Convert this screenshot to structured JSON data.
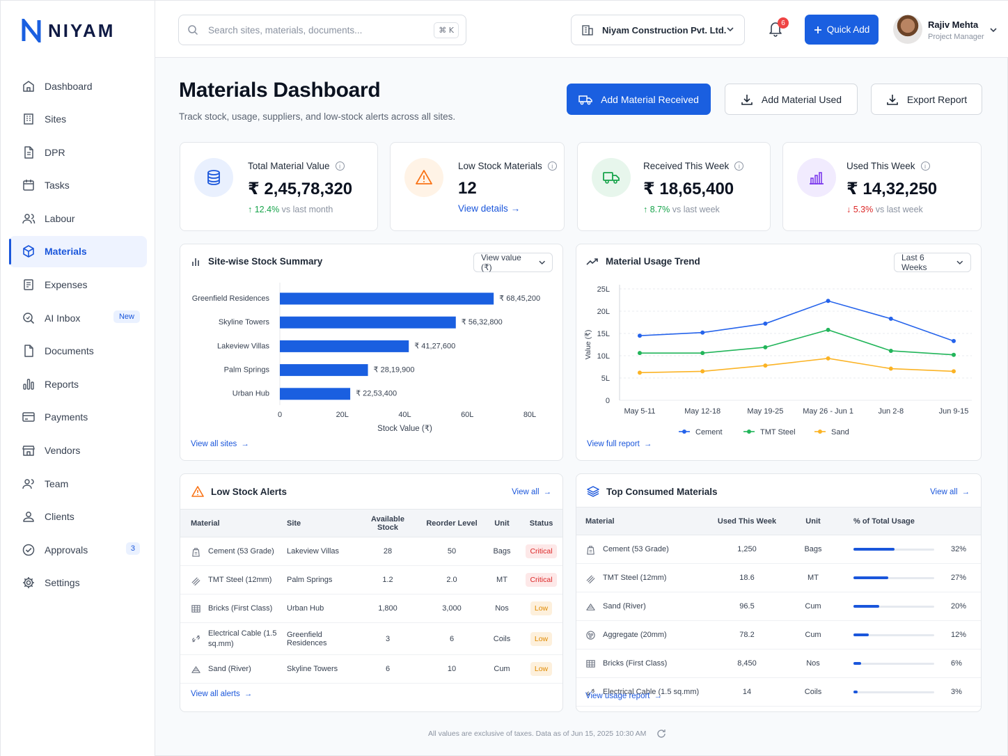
{
  "brand": {
    "name": "NIYAM",
    "accent": "#1a5fe0"
  },
  "sidebar": {
    "items": [
      {
        "label": "Dashboard",
        "icon": "home-icon"
      },
      {
        "label": "Sites",
        "icon": "building-icon"
      },
      {
        "label": "DPR",
        "icon": "document-icon"
      },
      {
        "label": "Tasks",
        "icon": "calendar-icon"
      },
      {
        "label": "Labour",
        "icon": "people-icon"
      },
      {
        "label": "Materials",
        "icon": "cube-icon",
        "active": true
      },
      {
        "label": "Expenses",
        "icon": "receipt-icon"
      },
      {
        "label": "AI Inbox",
        "icon": "ai-search-icon",
        "badge": "New"
      },
      {
        "label": "Documents",
        "icon": "file-icon"
      },
      {
        "label": "Reports",
        "icon": "chart-icon"
      },
      {
        "label": "Payments",
        "icon": "card-icon"
      },
      {
        "label": "Vendors",
        "icon": "store-icon"
      },
      {
        "label": "Team",
        "icon": "team-icon"
      },
      {
        "label": "Clients",
        "icon": "client-icon"
      },
      {
        "label": "Approvals",
        "icon": "check-circle-icon",
        "badge": "3"
      },
      {
        "label": "Settings",
        "icon": "gear-icon"
      }
    ]
  },
  "topbar": {
    "search_placeholder": "Search sites, materials, documents...",
    "search_shortcut": "⌘ K",
    "company": "Niyam Construction Pvt. Ltd.",
    "notifications": "6",
    "quick_add": "Quick Add",
    "user": {
      "name": "Rajiv Mehta",
      "role": "Project Manager"
    }
  },
  "header": {
    "title": "Materials Dashboard",
    "subtitle": "Track stock, usage, suppliers, and low-stock alerts across all sites.",
    "btn_received": "Add Material Received",
    "btn_used": "Add Material Used",
    "btn_export": "Export Report"
  },
  "kpis": {
    "total": {
      "label": "Total Material Value",
      "value": "₹ 2,45,78,320",
      "delta": "12.4%",
      "delta_text": "vs last month"
    },
    "low": {
      "label": "Low Stock Materials",
      "value": "12",
      "link": "View details"
    },
    "received": {
      "label": "Received This Week",
      "value": "₹ 18,65,400",
      "delta": "8.7%",
      "delta_text": "vs last week"
    },
    "used": {
      "label": "Used This Week",
      "value": "₹ 14,32,250",
      "delta": "5.3%",
      "delta_text": "vs last week"
    }
  },
  "stock_summary": {
    "title": "Site-wise Stock Summary",
    "select": "View value (₹)",
    "link": "View all sites"
  },
  "usage_trend": {
    "title": "Material Usage Trend",
    "select": "Last 6 Weeks",
    "link": "View full report"
  },
  "chart_data": [
    {
      "type": "bar",
      "orientation": "horizontal",
      "categories": [
        "Greenfield Residences",
        "Skyline Towers",
        "Lakeview Villas",
        "Palm Springs",
        "Urban Hub"
      ],
      "values": [
        68.452,
        56.328,
        41.276,
        28.199,
        22.534
      ],
      "data_labels": [
        "₹ 68,45,200",
        "₹ 56,32,800",
        "₹ 41,27,600",
        "₹ 28,19,900",
        "₹ 22,53,400"
      ],
      "xlabel": "Stock Value (₹)",
      "xticks": [
        "0",
        "20L",
        "40L",
        "60L",
        "80L"
      ],
      "xlim": [
        0,
        80
      ],
      "color": "#1a5fe0"
    },
    {
      "type": "line",
      "x": [
        "May 5-11",
        "May 12-18",
        "May 19-25",
        "May 26 - Jun 1",
        "Jun 2-8",
        "Jun 9-15"
      ],
      "ylabel": "Value (₹)",
      "yticks": [
        "0",
        "5L",
        "10L",
        "15L",
        "20L",
        "25L"
      ],
      "ylim": [
        0,
        25
      ],
      "grid": true,
      "legend": "bottom",
      "series": [
        {
          "name": "Cement",
          "color": "#2563eb",
          "values": [
            14.5,
            15.2,
            17.2,
            22.3,
            18.3,
            13.3
          ]
        },
        {
          "name": "TMT Steel",
          "color": "#22b55a",
          "values": [
            10.6,
            10.6,
            11.9,
            15.8,
            11.1,
            10.2
          ]
        },
        {
          "name": "Sand",
          "color": "#fbb324",
          "values": [
            6.2,
            6.5,
            7.8,
            9.4,
            7.1,
            6.5
          ]
        }
      ]
    }
  ],
  "low_stock": {
    "title": "Low Stock Alerts",
    "view_all": "View all",
    "footer_link": "View all alerts",
    "columns": [
      "Material",
      "Site",
      "Available Stock",
      "Reorder Level",
      "Unit",
      "Status"
    ],
    "rows": [
      {
        "material": "Cement (53 Grade)",
        "icon": "bag-icon",
        "site": "Lakeview Villas",
        "available": "28",
        "reorder": "50",
        "unit": "Bags",
        "status": "Critical"
      },
      {
        "material": "TMT Steel (12mm)",
        "icon": "steel-bars-icon",
        "site": "Palm Springs",
        "available": "1.2",
        "reorder": "2.0",
        "unit": "MT",
        "status": "Critical"
      },
      {
        "material": "Bricks (First Class)",
        "icon": "brick-grid-icon",
        "site": "Urban Hub",
        "available": "1,800",
        "reorder": "3,000",
        "unit": "Nos",
        "status": "Low"
      },
      {
        "material": "Electrical Cable (1.5 sq.mm)",
        "icon": "cable-icon",
        "site": "Greenfield Residences",
        "available": "3",
        "reorder": "6",
        "unit": "Coils",
        "status": "Low"
      },
      {
        "material": "Sand (River)",
        "icon": "sand-pile-icon",
        "site": "Skyline Towers",
        "available": "6",
        "reorder": "10",
        "unit": "Cum",
        "status": "Low"
      }
    ]
  },
  "top_consumed": {
    "title": "Top Consumed Materials",
    "view_all": "View all",
    "footer_link": "View usage report",
    "columns": [
      "Material",
      "Used This Week",
      "Unit",
      "% of Total Usage"
    ],
    "rows": [
      {
        "material": "Cement (53 Grade)",
        "icon": "bag-icon",
        "used": "1,250",
        "unit": "Bags",
        "pct_label": "32%",
        "pct": 32
      },
      {
        "material": "TMT Steel (12mm)",
        "icon": "steel-bars-icon",
        "used": "18.6",
        "unit": "MT",
        "pct_label": "27%",
        "pct": 27
      },
      {
        "material": "Sand (River)",
        "icon": "sand-pile-icon",
        "used": "96.5",
        "unit": "Cum",
        "pct_label": "20%",
        "pct": 20
      },
      {
        "material": "Aggregate (20mm)",
        "icon": "aggregate-icon",
        "used": "78.2",
        "unit": "Cum",
        "pct_label": "12%",
        "pct": 12
      },
      {
        "material": "Bricks (First Class)",
        "icon": "brick-grid-icon",
        "used": "8,450",
        "unit": "Nos",
        "pct_label": "6%",
        "pct": 6
      },
      {
        "material": "Electrical Cable (1.5 sq.mm)",
        "icon": "cable-icon",
        "used": "14",
        "unit": "Coils",
        "pct_label": "3%",
        "pct": 3
      }
    ]
  },
  "footer": {
    "note": "All values are exclusive of taxes. Data as of Jun 15, 2025 10:30 AM"
  }
}
